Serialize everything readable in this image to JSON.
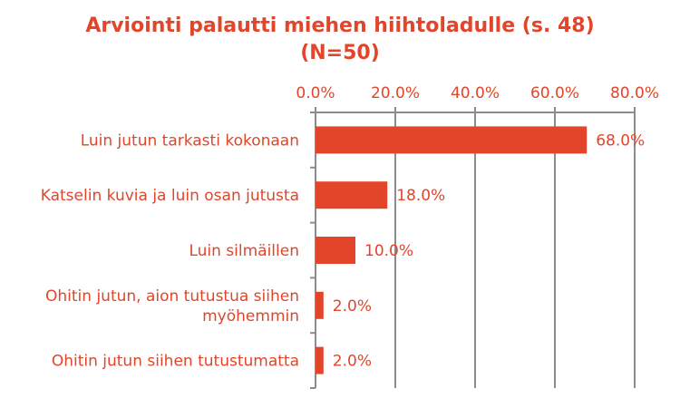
{
  "chart_data": {
    "type": "bar",
    "orientation": "horizontal",
    "title": "Arviointi palautti miehen hiihtoladulle (s. 48)",
    "subtitle": "(N=50)",
    "categories": [
      "Luin jutun tarkasti kokonaan",
      "Katselin kuvia ja luin osan jutusta",
      "Luin silmäillen",
      "Ohitin jutun, aion tutustua siihen myöhemmin",
      "Ohitin jutun siihen tutustumatta"
    ],
    "category_lines": [
      [
        "Luin jutun tarkasti kokonaan"
      ],
      [
        "Katselin kuvia ja luin osan jutusta"
      ],
      [
        "Luin silmäillen"
      ],
      [
        "Ohitin jutun, aion tutustua siihen",
        "myöhemmin"
      ],
      [
        "Ohitin jutun siihen tutustumatta"
      ]
    ],
    "values": [
      68.0,
      18.0,
      10.0,
      2.0,
      2.0
    ],
    "value_labels": [
      "68.0%",
      "18.0%",
      "10.0%",
      "2.0%",
      "2.0%"
    ],
    "xlim": [
      0,
      80
    ],
    "xticks": [
      0,
      20,
      40,
      60,
      80
    ],
    "xtick_labels": [
      "0.0%",
      "20.0%",
      "40.0%",
      "60.0%",
      "80.0%"
    ],
    "xaxis_position": "top",
    "grid": true,
    "legend": "none",
    "colors": {
      "bar": "#e2452a",
      "text": "#e2452a",
      "grid": "#8c8c8c"
    }
  }
}
